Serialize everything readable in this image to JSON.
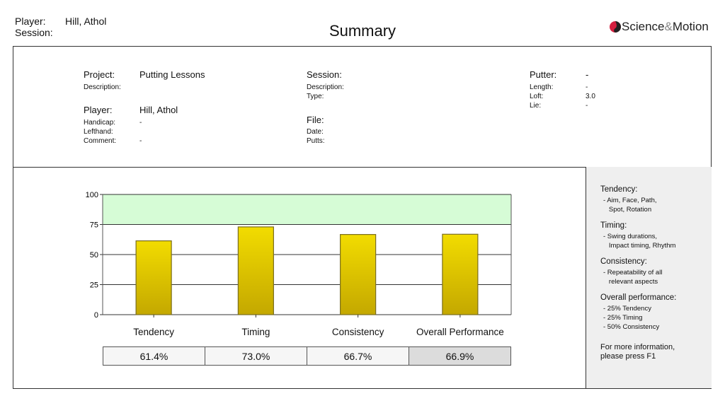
{
  "header": {
    "player_label": "Player:",
    "player_value": "Hill, Athol",
    "session_label": "Session:",
    "title": "Summary",
    "logo_a": "Science",
    "logo_amp": "&",
    "logo_b": "Motion"
  },
  "info": {
    "project_label": "Project:",
    "project_value": "Putting Lessons",
    "description_label": "Description:",
    "player_label": "Player:",
    "player_value": "Hill, Athol",
    "handicap_label": "Handicap:",
    "handicap_value": "-",
    "lefthand_label": "Lefthand:",
    "comment_label": "Comment:",
    "comment_value": "-",
    "session_label": "Session:",
    "session_description_label": "Description:",
    "type_label": "Type:",
    "file_label": "File:",
    "date_label": "Date:",
    "putts_label": "Putts:",
    "putter_label": "Putter:",
    "putter_value": "-",
    "length_label": "Length:",
    "length_value": "-",
    "loft_label": "Loft:",
    "loft_value": "3.0",
    "lie_label": "Lie:",
    "lie_value": "-"
  },
  "chart_data": {
    "type": "bar",
    "categories": [
      "Tendency",
      "Timing",
      "Consistency",
      "Overall Performance"
    ],
    "values": [
      61.4,
      73.0,
      66.7,
      66.9
    ],
    "value_labels": [
      "61.4%",
      "73.0%",
      "66.7%",
      "66.9%"
    ],
    "ylim": [
      0,
      100
    ],
    "yticks": [
      "0",
      "25",
      "50",
      "75",
      "100"
    ],
    "target_band": [
      75,
      100
    ],
    "colors": {
      "bar": "#e6cc00",
      "band": "#d6fcd6"
    }
  },
  "side": {
    "sections": [
      {
        "title": "Tendency:",
        "text": "- Aim, Face, Path,\n   Spot, Rotation"
      },
      {
        "title": "Timing:",
        "text": "- Swing durations,\n   Impact timing, Rhythm"
      },
      {
        "title": "Consistency:",
        "text": "- Repeatability of all\n   relevant aspects"
      },
      {
        "title": "Overall performance:",
        "text": "- 25% Tendency\n- 25% Timing\n- 50% Consistency"
      }
    ],
    "help": "For more information,\nplease press F1"
  }
}
